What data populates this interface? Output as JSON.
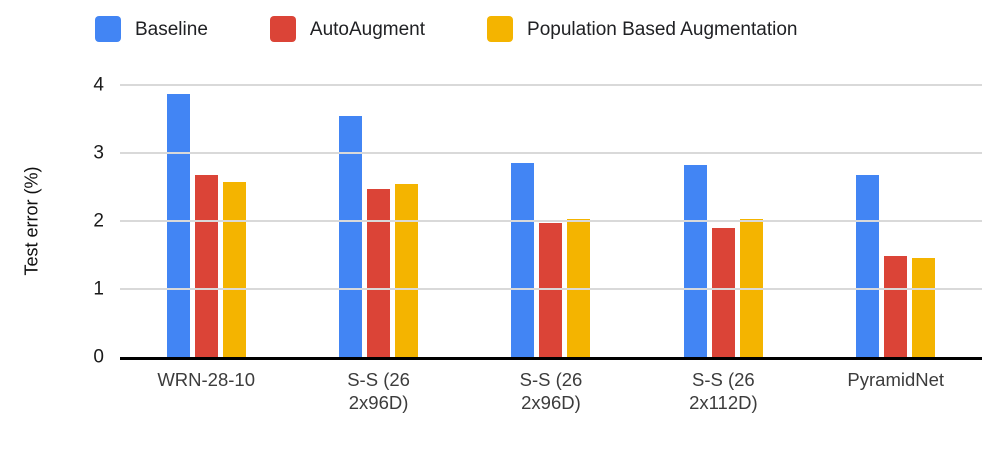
{
  "chart_data": {
    "type": "bar",
    "title": "",
    "xlabel": "",
    "ylabel": "Test error (%)",
    "ylim": [
      0,
      4
    ],
    "yticks": [
      0,
      1,
      2,
      3,
      4
    ],
    "grid": true,
    "legend_position": "top",
    "categories": [
      "WRN-28-10",
      "S-S (26 2x96D)",
      "S-S (26 2x96D)",
      "S-S (26 2x112D)",
      "PyramidNet"
    ],
    "series": [
      {
        "name": "Baseline",
        "color": "#4285F4",
        "values": [
          3.87,
          3.55,
          2.86,
          2.82,
          2.67
        ]
      },
      {
        "name": "AutoAugment",
        "color": "#DB4437",
        "values": [
          2.68,
          2.47,
          1.97,
          1.89,
          1.48
        ]
      },
      {
        "name": "Population Based Augmentation",
        "color": "#F4B400",
        "values": [
          2.58,
          2.54,
          2.03,
          2.03,
          1.46
        ]
      }
    ]
  }
}
